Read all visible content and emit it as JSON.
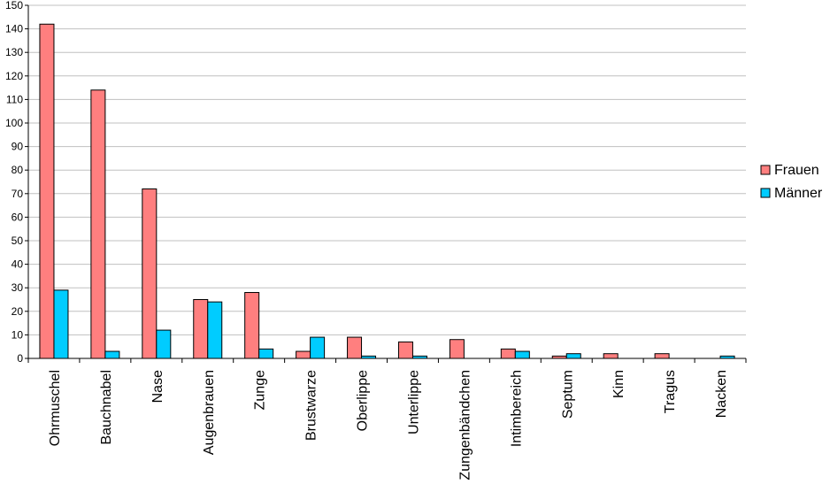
{
  "chart_data": {
    "type": "bar",
    "categories": [
      "Ohrmuschel",
      "Bauchnabel",
      "Nase",
      "Augenbrauen",
      "Zunge",
      "Brustwarze",
      "Oberlippe",
      "Unterlippe",
      "Zungenbändchen",
      "Intimbereich",
      "Septum",
      "Kinn",
      "Tragus",
      "Nacken"
    ],
    "series": [
      {
        "name": "Frauen",
        "color": "#ff7f7f",
        "values": [
          142,
          114,
          72,
          25,
          28,
          3,
          9,
          7,
          8,
          4,
          1,
          2,
          2,
          0
        ]
      },
      {
        "name": "Männer",
        "color": "#00ccff",
        "values": [
          29,
          3,
          12,
          24,
          4,
          9,
          1,
          1,
          0,
          3,
          2,
          0,
          0,
          1
        ]
      }
    ],
    "yticks": [
      "0",
      "10",
      "20",
      "30",
      "40",
      "50",
      "60",
      "70",
      "80",
      "90",
      "100",
      "110",
      "120",
      "130",
      "140",
      "150"
    ],
    "ylim": [
      0,
      150
    ],
    "grid": true,
    "legend": "right",
    "title": "",
    "xlabel": "",
    "ylabel": ""
  }
}
